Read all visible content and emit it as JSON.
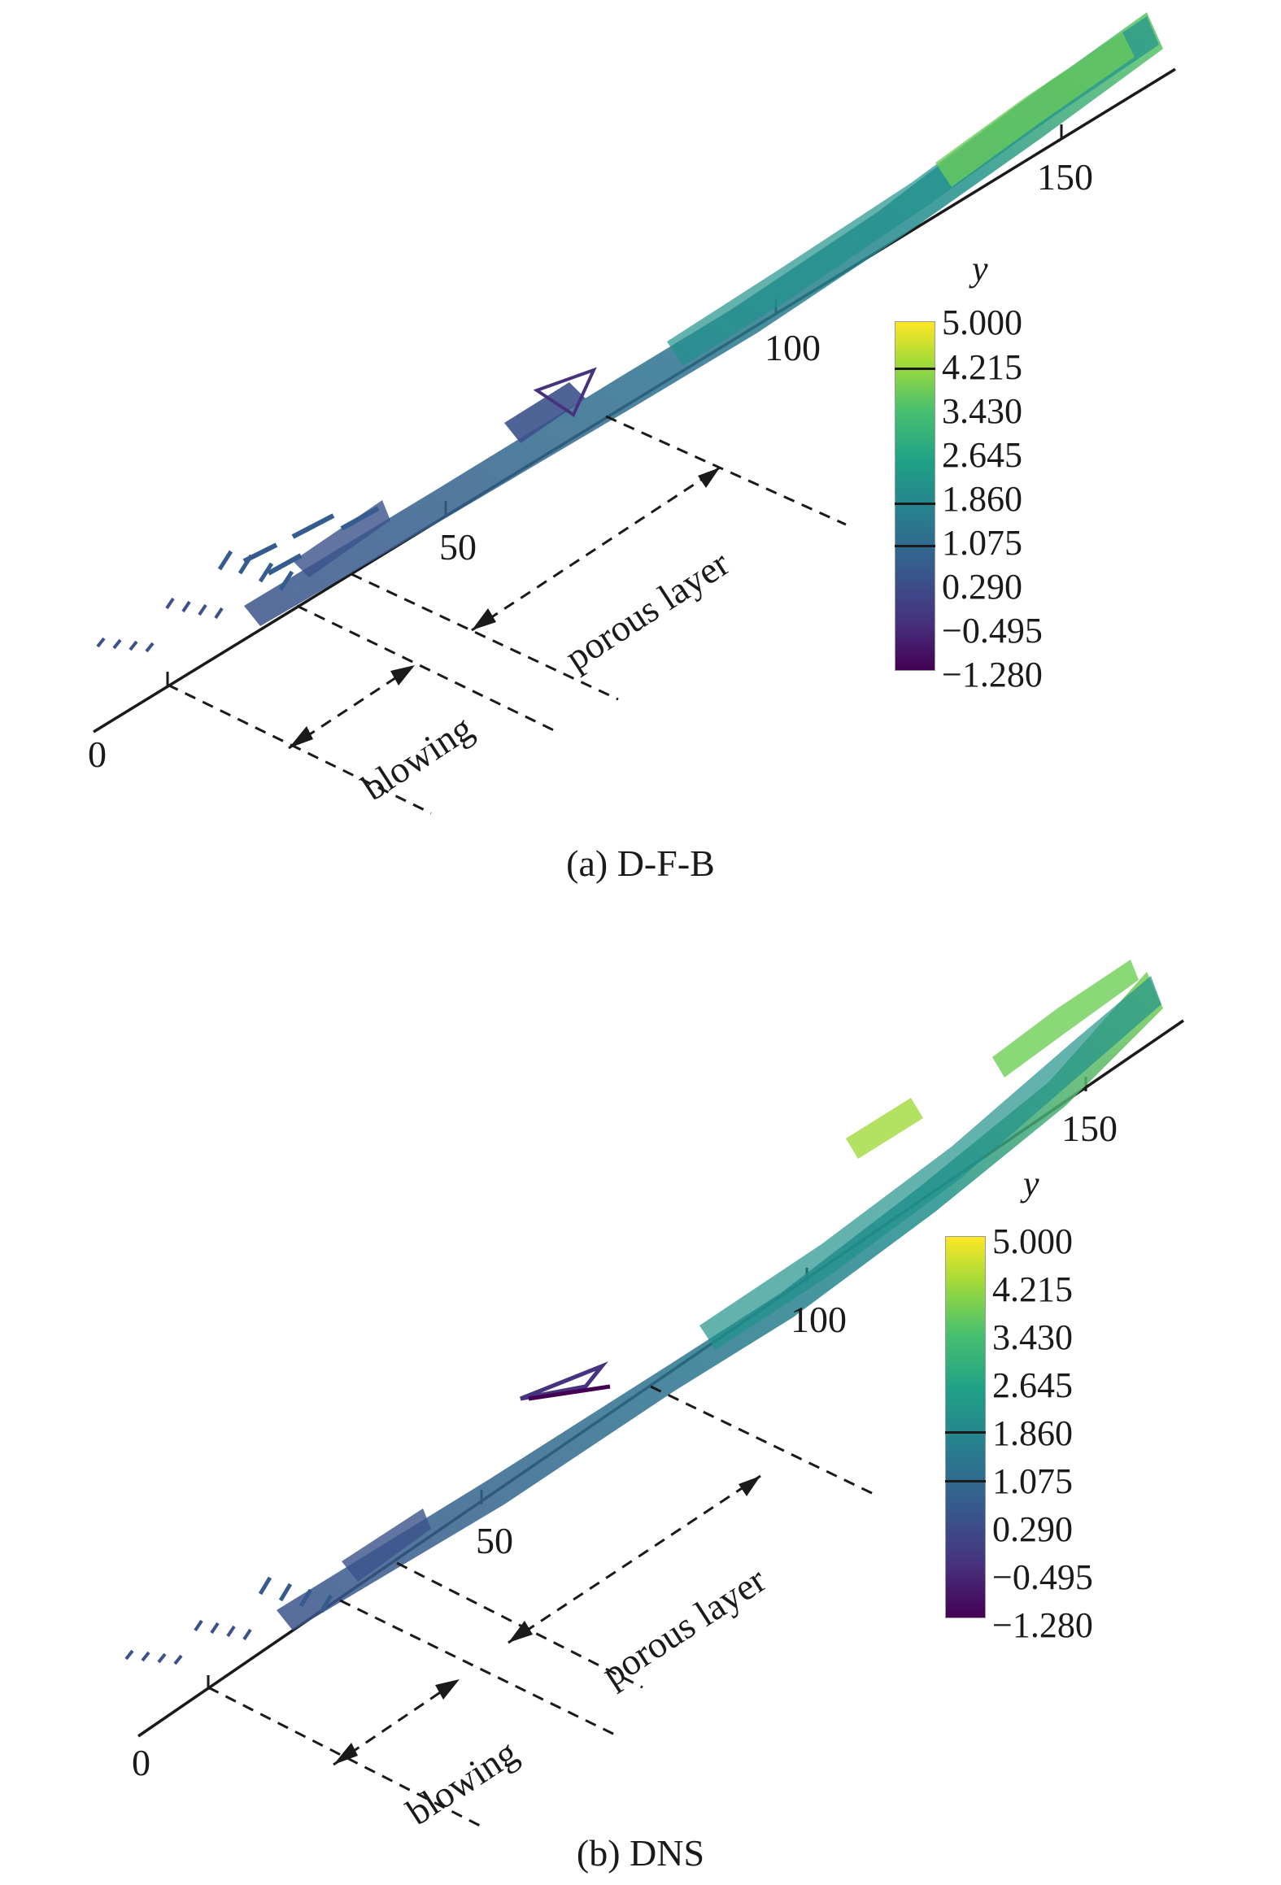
{
  "panels": [
    {
      "caption": "(a) D-F-B",
      "axis_ticks": [
        "0",
        "50",
        "100",
        "150"
      ],
      "region_labels": {
        "blowing": "blowing",
        "porous": "porous layer"
      },
      "colorbar": {
        "title": "y",
        "ticks": [
          "5.000",
          "4.215",
          "3.430",
          "2.645",
          "1.860",
          "1.075",
          "0.290",
          "−0.495",
          "−1.280"
        ]
      }
    },
    {
      "caption": "(b) DNS",
      "axis_ticks": [
        "0",
        "50",
        "100",
        "150"
      ],
      "region_labels": {
        "blowing": "blowing",
        "porous": "porous layer"
      },
      "colorbar": {
        "title": "y",
        "ticks": [
          "5.000",
          "4.215",
          "3.430",
          "2.645",
          "1.860",
          "1.075",
          "0.290",
          "−0.495",
          "−1.280"
        ]
      }
    }
  ],
  "colorbar_colors": [
    "#fde725",
    "#a0da39",
    "#4ac16d",
    "#1fa187",
    "#277f8e",
    "#365c8d",
    "#46327e",
    "#440154"
  ]
}
